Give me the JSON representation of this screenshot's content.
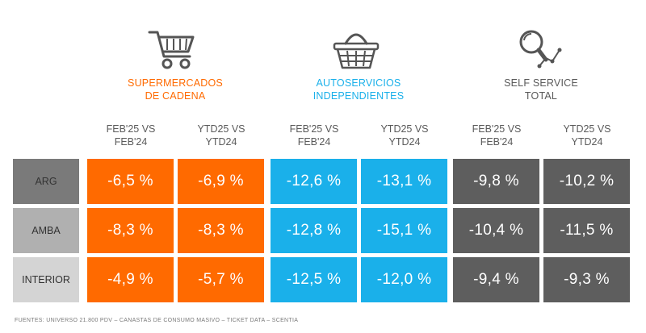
{
  "colors": {
    "supermercados": "#ff6a00",
    "autoservicios": "#1ab0ea",
    "selfservice": "#5e5e5e",
    "label_gray": "#404040",
    "row_label_bgs": [
      "#7a7a7a",
      "#b0b0b0",
      "#d4d4d4"
    ]
  },
  "groups": [
    {
      "title": "SUPERMERCADOS\nDE CADENA",
      "icon": "shopping-cart-icon"
    },
    {
      "title": "AUTOSERVICIOS\nINDEPENDIENTES",
      "icon": "shopping-basket-icon"
    },
    {
      "title": "SELF SERVICE\nTOTAL",
      "icon": "magnifier-trend-icon"
    }
  ],
  "column_headers": [
    "FEB'25 VS\nFEB'24",
    "YTD25 VS\nYTD24",
    "FEB'25 VS\nFEB'24",
    "YTD25 VS\nYTD24",
    "FEB'25 VS\nFEB'24",
    "YTD25 VS\nYTD24"
  ],
  "footer": "FUENTES: UNIVERSO 21.800 PDV – CANASTAS DE CONSUMO MASIVO – TICKET DATA  – SCENTIA",
  "chart_data": {
    "type": "table",
    "title": "",
    "row_labels": [
      "ARG",
      "AMBA",
      "INTERIOR"
    ],
    "columns": [
      "Supermercados de cadena – FEB'25 vs FEB'24",
      "Supermercados de cadena – YTD25 vs YTD24",
      "Autoservicios independientes – FEB'25 vs FEB'24",
      "Autoservicios independientes – YTD25 vs YTD24",
      "Self service total – FEB'25 vs FEB'24",
      "Self service total – YTD25 vs YTD24"
    ],
    "values": [
      [
        -6.5,
        -6.9,
        -12.6,
        -13.1,
        -9.8,
        -10.2
      ],
      [
        -8.3,
        -8.3,
        -12.8,
        -15.1,
        -10.4,
        -11.5
      ],
      [
        -4.9,
        -5.7,
        -12.5,
        -12.0,
        -9.4,
        -9.3
      ]
    ],
    "display": [
      [
        "-6,5 %",
        "-6,9 %",
        "-12,6 %",
        "-13,1 %",
        "-9,8 %",
        "-10,2 %"
      ],
      [
        "-8,3 %",
        "-8,3 %",
        "-12,8 %",
        "-15,1 %",
        "-10,4 %",
        "-11,5 %"
      ],
      [
        "-4,9 %",
        "-5,7 %",
        "-12,5 %",
        "-12,0 %",
        "-9,4 %",
        "-9,3 %"
      ]
    ]
  }
}
